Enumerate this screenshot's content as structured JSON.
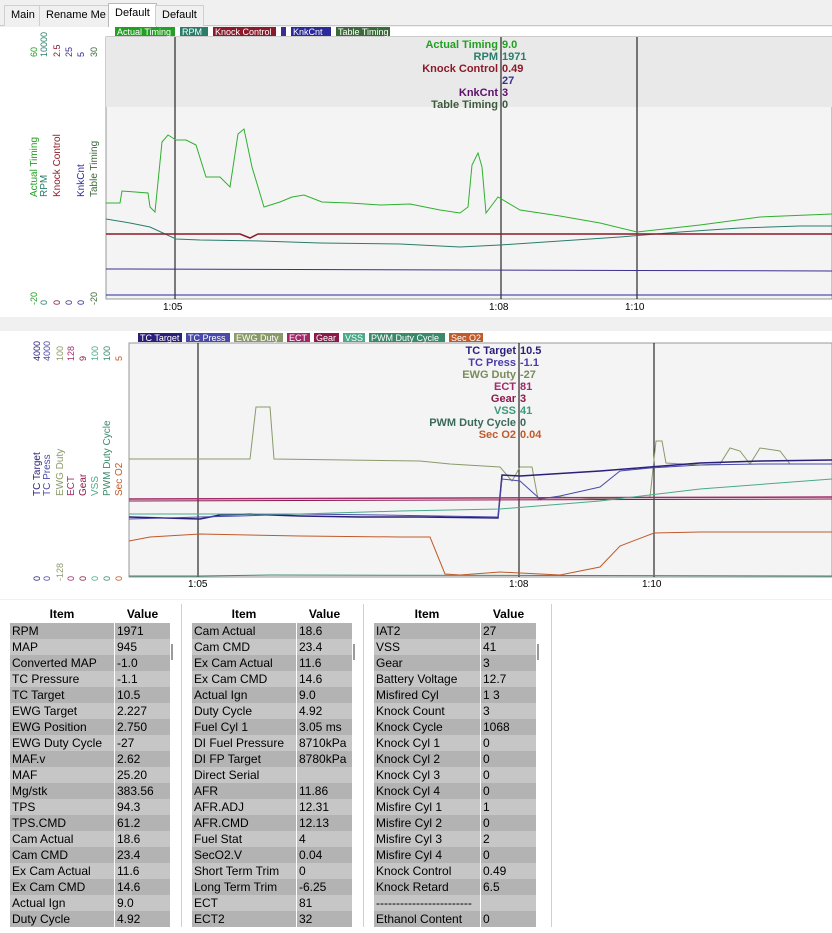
{
  "tabs": [
    "Main",
    "Rename Me",
    "Default",
    "Default"
  ],
  "chart1": {
    "legend": [
      {
        "label": "Actual Timing",
        "color": "#22a022"
      },
      {
        "label": "RPM",
        "color": "#2a7d6a"
      },
      {
        "label": "Knock Control",
        "color": "#8b1a2a"
      },
      {
        "label": "",
        "color": "#3b2f8f"
      },
      {
        "label": "KnkCnt",
        "color": "#2a2a9a"
      },
      {
        "label": "Table Timing",
        "color": "#3a6a3a"
      }
    ],
    "axis_labels": [
      "Actual Timing",
      "RPM",
      "Knock Control",
      "",
      "KnkCnt",
      "Table Timing"
    ],
    "axis_top": [
      "60",
      "10000",
      "2.5",
      "25",
      "5",
      "30"
    ],
    "axis_bottom": [
      "-20",
      "0",
      "0",
      "0",
      "0",
      "-20"
    ],
    "readout": [
      {
        "name": "Actual Timing",
        "value": "9.0",
        "color": "#22a022"
      },
      {
        "name": "RPM",
        "value": "1971",
        "color": "#2a7d6a"
      },
      {
        "name": "Knock Control",
        "value": "0.49",
        "color": "#8b1a2a"
      },
      {
        "name": "",
        "value": "27",
        "color": "#3b2f8f"
      },
      {
        "name": "KnkCnt",
        "value": "3",
        "color": "#5b0f6a"
      },
      {
        "name": "Table Timing",
        "value": "0",
        "color": "#3a5a3a"
      }
    ],
    "time_ticks": [
      "1:05",
      "1:08",
      "1:10"
    ]
  },
  "chart2": {
    "legend": [
      {
        "label": "TC Target",
        "color": "#2a1f7a"
      },
      {
        "label": "TC Press",
        "color": "#4a4aaa"
      },
      {
        "label": "EWG Duty",
        "color": "#8a9a6a"
      },
      {
        "label": "ECT",
        "color": "#a02a6a"
      },
      {
        "label": "Gear",
        "color": "#8a1a4a"
      },
      {
        "label": "VSS",
        "color": "#4aaa8a"
      },
      {
        "label": "PWM Duty Cycle",
        "color": "#3a8a6a"
      },
      {
        "label": "Sec O2",
        "color": "#c05a2a"
      }
    ],
    "axis_labels": [
      "TC Target",
      "TC Press",
      "EWG Duty",
      "ECT",
      "Gear",
      "VSS",
      "PWM Duty Cycle",
      "Sec O2"
    ],
    "axis_top": [
      "4000",
      "4000",
      "100",
      "128",
      "9",
      "100",
      "100",
      "5"
    ],
    "axis_bottom": [
      "0",
      "0",
      "-128",
      "0",
      "0",
      "0",
      "0",
      "0"
    ],
    "readout": [
      {
        "name": "TC Target",
        "value": "10.5",
        "color": "#2a1f7a"
      },
      {
        "name": "TC Press",
        "value": "-1.1",
        "color": "#4a3aaa"
      },
      {
        "name": "EWG Duty",
        "value": "-27",
        "color": "#7a8a5a"
      },
      {
        "name": "ECT",
        "value": "81",
        "color": "#a02a6a"
      },
      {
        "name": "Gear",
        "value": "3",
        "color": "#8a1a4a"
      },
      {
        "name": "VSS",
        "value": "41",
        "color": "#3a9a7a"
      },
      {
        "name": "PWM Duty Cycle",
        "value": "0",
        "color": "#3a6a5a"
      },
      {
        "name": "Sec O2",
        "value": "0.04",
        "color": "#c05a2a"
      }
    ],
    "time_ticks": [
      "1:05",
      "1:08",
      "1:10"
    ]
  },
  "tables": {
    "header_item": "Item",
    "header_value": "Value",
    "col1": [
      [
        "RPM",
        "1971"
      ],
      [
        "MAP",
        "945"
      ],
      [
        "Converted MAP",
        "-1.0"
      ],
      [
        "TC Pressure",
        "-1.1"
      ],
      [
        "TC Target",
        "10.5"
      ],
      [
        "EWG Target",
        "2.227"
      ],
      [
        "EWG Position",
        "2.750"
      ],
      [
        "EWG Duty Cycle",
        "-27"
      ],
      [
        "MAF.v",
        "2.62"
      ],
      [
        "MAF",
        "25.20"
      ],
      [
        "Mg/stk",
        "383.56"
      ],
      [
        "TPS",
        "94.3"
      ],
      [
        "TPS.CMD",
        "61.2"
      ],
      [
        "Cam Actual",
        "18.6"
      ],
      [
        "Cam CMD",
        "23.4"
      ],
      [
        "Ex Cam Actual",
        "11.6"
      ],
      [
        "Ex Cam CMD",
        "14.6"
      ],
      [
        "Actual Ign",
        "9.0"
      ],
      [
        "Duty Cycle",
        "4.92"
      ]
    ],
    "col2": [
      [
        "Cam Actual",
        "18.6"
      ],
      [
        "Cam CMD",
        "23.4"
      ],
      [
        "Ex Cam Actual",
        "11.6"
      ],
      [
        "Ex Cam CMD",
        "14.6"
      ],
      [
        "Actual Ign",
        "9.0"
      ],
      [
        "Duty Cycle",
        "4.92"
      ],
      [
        "Fuel Cyl 1",
        "3.05 ms"
      ],
      [
        "DI Fuel Pressure",
        "8710kPa"
      ],
      [
        "DI FP Target",
        "8780kPa"
      ],
      [
        "Direct Serial",
        ""
      ],
      [
        "AFR",
        "11.86"
      ],
      [
        "AFR.ADJ",
        "12.31"
      ],
      [
        "AFR.CMD",
        "12.13"
      ],
      [
        "Fuel Stat",
        "4"
      ],
      [
        "SecO2.V",
        "0.04"
      ],
      [
        "Short Term Trim",
        "0"
      ],
      [
        "Long Term Trim",
        "-6.25"
      ],
      [
        "ECT",
        "81"
      ],
      [
        "ECT2",
        "32"
      ]
    ],
    "col3": [
      [
        "IAT2",
        "27"
      ],
      [
        "VSS",
        "41"
      ],
      [
        "Gear",
        "3"
      ],
      [
        "Battery Voltage",
        "12.7"
      ],
      [
        "Misfired Cyl",
        "1 3"
      ],
      [
        "Knock Count",
        "3"
      ],
      [
        "Knock Cycle",
        "1068"
      ],
      [
        "Knock Cyl 1",
        "0"
      ],
      [
        "Knock Cyl 2",
        "0"
      ],
      [
        "Knock Cyl 3",
        "0"
      ],
      [
        "Knock Cyl 4",
        "0"
      ],
      [
        "Misfire Cyl 1",
        "1"
      ],
      [
        "Misfire Cyl 2",
        "0"
      ],
      [
        "Misfire Cyl 3",
        "2"
      ],
      [
        "Misfire Cyl 4",
        "0"
      ],
      [
        "Knock Control",
        "0.49"
      ],
      [
        "Knock Retard",
        "6.5"
      ],
      [
        "------------------------",
        ""
      ],
      [
        "Ethanol Content",
        "0"
      ]
    ]
  }
}
